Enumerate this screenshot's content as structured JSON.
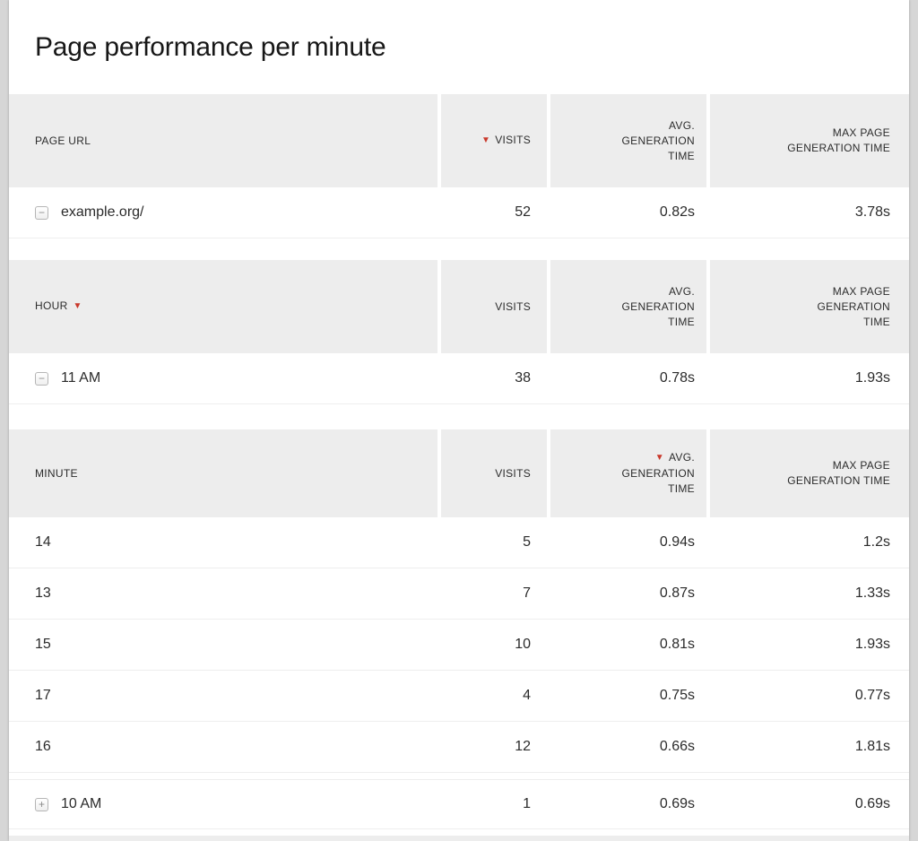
{
  "page": {
    "title": "Page performance per minute"
  },
  "icons": {
    "sort_descending": "▼",
    "collapse": "−",
    "expand": "+"
  },
  "colors": {
    "accent_red": "#c9382b",
    "header_bg": "#ededed",
    "page_bg": "#d6d6d6"
  },
  "tables": [
    {
      "name": "pages",
      "columns": [
        {
          "label": "PAGE URL",
          "sorted": null
        },
        {
          "label": "VISITS",
          "sorted": "desc"
        },
        {
          "label": "AVG.\nGENERATION\nTIME",
          "sorted": null
        },
        {
          "label": "MAX PAGE\nGENERATION TIME",
          "sorted": null
        }
      ],
      "rows": [
        {
          "toggle": "collapse",
          "label": "example.org/",
          "visits": "52",
          "avg_generation_time": "0.82s",
          "max_generation_time": "3.78s"
        }
      ]
    },
    {
      "name": "hours",
      "columns": [
        {
          "label": "HOUR",
          "sorted": "desc"
        },
        {
          "label": "VISITS",
          "sorted": null
        },
        {
          "label": "AVG.\nGENERATION\nTIME",
          "sorted": null
        },
        {
          "label": "MAX PAGE\nGENERATION\nTIME",
          "sorted": null
        }
      ],
      "rows": [
        {
          "toggle": "collapse",
          "label": "11 AM",
          "visits": "38",
          "avg_generation_time": "0.78s",
          "max_generation_time": "1.93s"
        },
        {
          "toggle": "expand",
          "label": "10 AM",
          "visits": "1",
          "avg_generation_time": "0.69s",
          "max_generation_time": "0.69s"
        }
      ]
    },
    {
      "name": "minutes",
      "columns": [
        {
          "label": "MINUTE",
          "sorted": null
        },
        {
          "label": "VISITS",
          "sorted": null
        },
        {
          "label": "AVG.\nGENERATION\nTIME",
          "sorted": "desc"
        },
        {
          "label": "MAX PAGE\nGENERATION TIME",
          "sorted": null
        }
      ],
      "rows": [
        {
          "toggle": null,
          "label": "14",
          "visits": "5",
          "avg_generation_time": "0.94s",
          "max_generation_time": "1.2s"
        },
        {
          "toggle": null,
          "label": "13",
          "visits": "7",
          "avg_generation_time": "0.87s",
          "max_generation_time": "1.33s"
        },
        {
          "toggle": null,
          "label": "15",
          "visits": "10",
          "avg_generation_time": "0.81s",
          "max_generation_time": "1.93s"
        },
        {
          "toggle": null,
          "label": "17",
          "visits": "4",
          "avg_generation_time": "0.75s",
          "max_generation_time": "0.77s"
        },
        {
          "toggle": null,
          "label": "16",
          "visits": "12",
          "avg_generation_time": "0.66s",
          "max_generation_time": "1.81s"
        }
      ]
    }
  ]
}
